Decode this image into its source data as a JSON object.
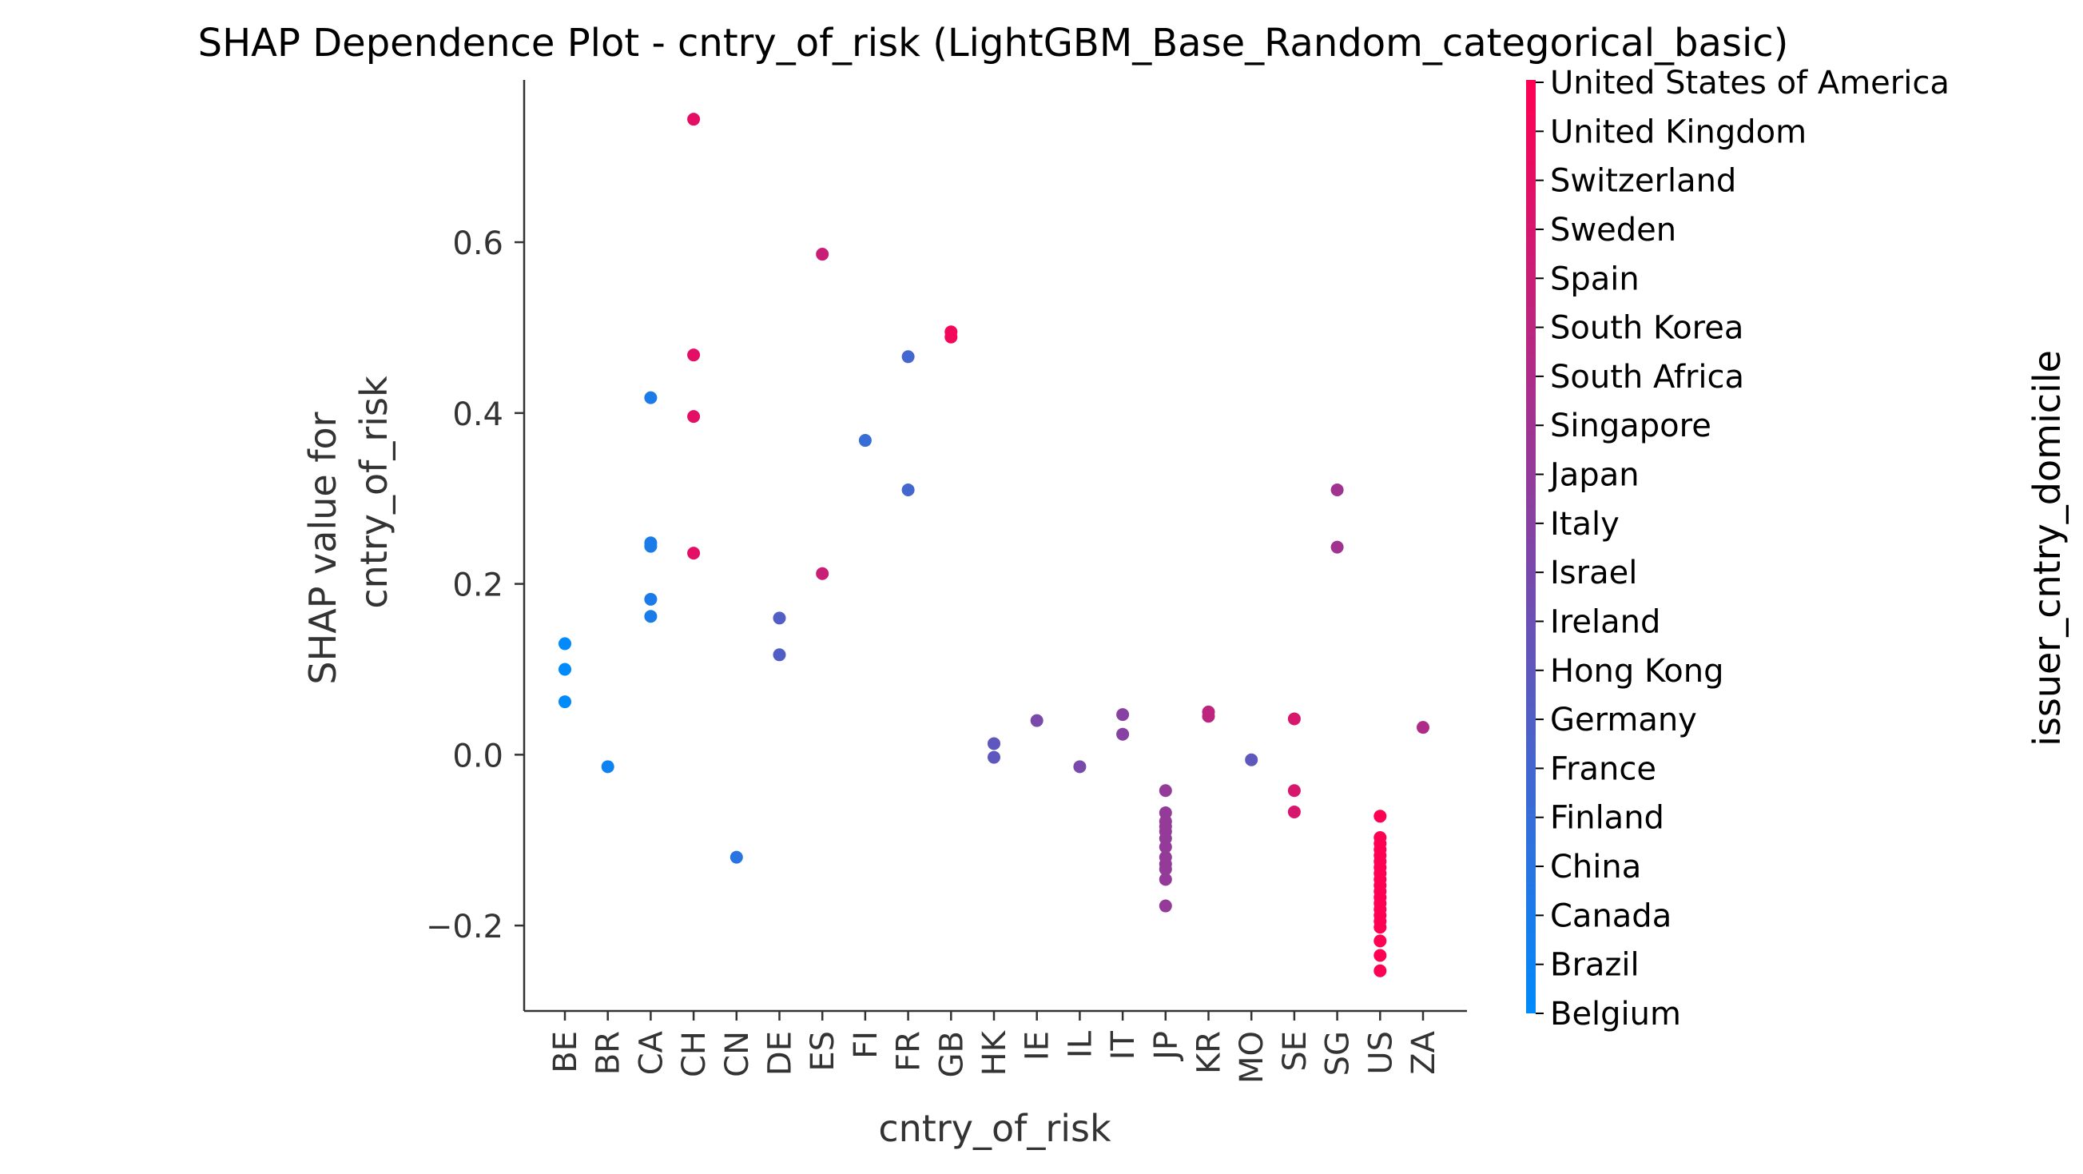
{
  "chart_data": {
    "type": "scatter",
    "title": "SHAP Dependence Plot - cntry_of_risk (LightGBM_Base_Random_categorical_basic)",
    "xlabel": "cntry_of_risk",
    "ylabel_lines": [
      "SHAP value for",
      "cntry_of_risk"
    ],
    "ylim": [
      -0.3,
      0.79
    ],
    "y_ticks": [
      -0.2,
      0.0,
      0.2,
      0.4,
      0.6
    ],
    "y_tick_labels": [
      "−0.2",
      "0.0",
      "0.2",
      "0.4",
      "0.6"
    ],
    "categories": [
      "BE",
      "BR",
      "CA",
      "CH",
      "CN",
      "DE",
      "ES",
      "FI",
      "FR",
      "GB",
      "HK",
      "IE",
      "IL",
      "IT",
      "JP",
      "KR",
      "MO",
      "SE",
      "SG",
      "US",
      "ZA"
    ],
    "grid": false,
    "colorbar": {
      "label": "issuer_cntry_domicile",
      "color_low": "#008afb",
      "color_high": "#ff0052",
      "labels": [
        "Belgium",
        "Brazil",
        "Canada",
        "China",
        "Finland",
        "France",
        "Germany",
        "Hong Kong",
        "Ireland",
        "Israel",
        "Italy",
        "Japan",
        "Singapore",
        "South Africa",
        "South Korea",
        "Spain",
        "Sweden",
        "Switzerland",
        "United Kingdom",
        "United States of America"
      ]
    },
    "points": [
      {
        "x": "BE",
        "y": 0.13,
        "c": 0
      },
      {
        "x": "BE",
        "y": 0.1,
        "c": 0
      },
      {
        "x": "BE",
        "y": 0.062,
        "c": 0
      },
      {
        "x": "BR",
        "y": -0.014,
        "c": 1
      },
      {
        "x": "CA",
        "y": 0.418,
        "c": 2
      },
      {
        "x": "CA",
        "y": 0.248,
        "c": 2
      },
      {
        "x": "CA",
        "y": 0.244,
        "c": 2
      },
      {
        "x": "CA",
        "y": 0.182,
        "c": 2
      },
      {
        "x": "CA",
        "y": 0.162,
        "c": 2
      },
      {
        "x": "CH",
        "y": 0.744,
        "c": 17
      },
      {
        "x": "CH",
        "y": 0.468,
        "c": 17
      },
      {
        "x": "CH",
        "y": 0.396,
        "c": 17
      },
      {
        "x": "CH",
        "y": 0.236,
        "c": 17
      },
      {
        "x": "CN",
        "y": -0.12,
        "c": 3
      },
      {
        "x": "DE",
        "y": 0.16,
        "c": 6
      },
      {
        "x": "DE",
        "y": 0.117,
        "c": 6
      },
      {
        "x": "ES",
        "y": 0.586,
        "c": 15
      },
      {
        "x": "ES",
        "y": 0.212,
        "c": 15
      },
      {
        "x": "FI",
        "y": 0.368,
        "c": 4
      },
      {
        "x": "FR",
        "y": 0.466,
        "c": 5
      },
      {
        "x": "FR",
        "y": 0.31,
        "c": 5
      },
      {
        "x": "GB",
        "y": 0.495,
        "c": 18
      },
      {
        "x": "GB",
        "y": 0.489,
        "c": 18
      },
      {
        "x": "HK",
        "y": 0.013,
        "c": 7
      },
      {
        "x": "HK",
        "y": -0.003,
        "c": 7
      },
      {
        "x": "IE",
        "y": 0.04,
        "c": 9
      },
      {
        "x": "IL",
        "y": -0.014,
        "c": 9
      },
      {
        "x": "IT",
        "y": 0.047,
        "c": 10
      },
      {
        "x": "IT",
        "y": 0.024,
        "c": 10
      },
      {
        "x": "JP",
        "y": -0.042,
        "c": 11
      },
      {
        "x": "JP",
        "y": -0.068,
        "c": 11
      },
      {
        "x": "JP",
        "y": -0.078,
        "c": 11
      },
      {
        "x": "JP",
        "y": -0.084,
        "c": 11
      },
      {
        "x": "JP",
        "y": -0.09,
        "c": 11
      },
      {
        "x": "JP",
        "y": -0.098,
        "c": 11
      },
      {
        "x": "JP",
        "y": -0.108,
        "c": 11
      },
      {
        "x": "JP",
        "y": -0.12,
        "c": 11
      },
      {
        "x": "JP",
        "y": -0.128,
        "c": 11
      },
      {
        "x": "JP",
        "y": -0.134,
        "c": 11
      },
      {
        "x": "JP",
        "y": -0.146,
        "c": 11
      },
      {
        "x": "JP",
        "y": -0.177,
        "c": 11
      },
      {
        "x": "KR",
        "y": 0.05,
        "c": 14
      },
      {
        "x": "KR",
        "y": 0.045,
        "c": 14
      },
      {
        "x": "MO",
        "y": -0.006,
        "c": 7
      },
      {
        "x": "SE",
        "y": 0.042,
        "c": 16
      },
      {
        "x": "SE",
        "y": -0.042,
        "c": 16
      },
      {
        "x": "SE",
        "y": -0.067,
        "c": 16
      },
      {
        "x": "SG",
        "y": 0.31,
        "c": 12
      },
      {
        "x": "SG",
        "y": 0.243,
        "c": 12
      },
      {
        "x": "US",
        "y": -0.072,
        "c": 19
      },
      {
        "x": "US",
        "y": -0.097,
        "c": 19
      },
      {
        "x": "US",
        "y": -0.104,
        "c": 19
      },
      {
        "x": "US",
        "y": -0.111,
        "c": 19
      },
      {
        "x": "US",
        "y": -0.118,
        "c": 19
      },
      {
        "x": "US",
        "y": -0.125,
        "c": 19
      },
      {
        "x": "US",
        "y": -0.132,
        "c": 19
      },
      {
        "x": "US",
        "y": -0.139,
        "c": 19
      },
      {
        "x": "US",
        "y": -0.146,
        "c": 19
      },
      {
        "x": "US",
        "y": -0.153,
        "c": 19
      },
      {
        "x": "US",
        "y": -0.16,
        "c": 19
      },
      {
        "x": "US",
        "y": -0.167,
        "c": 19
      },
      {
        "x": "US",
        "y": -0.174,
        "c": 19
      },
      {
        "x": "US",
        "y": -0.181,
        "c": 19
      },
      {
        "x": "US",
        "y": -0.188,
        "c": 19
      },
      {
        "x": "US",
        "y": -0.195,
        "c": 19
      },
      {
        "x": "US",
        "y": -0.202,
        "c": 19
      },
      {
        "x": "US",
        "y": -0.218,
        "c": 19
      },
      {
        "x": "US",
        "y": -0.235,
        "c": 19
      },
      {
        "x": "US",
        "y": -0.253,
        "c": 19
      },
      {
        "x": "ZA",
        "y": 0.032,
        "c": 13
      }
    ]
  }
}
